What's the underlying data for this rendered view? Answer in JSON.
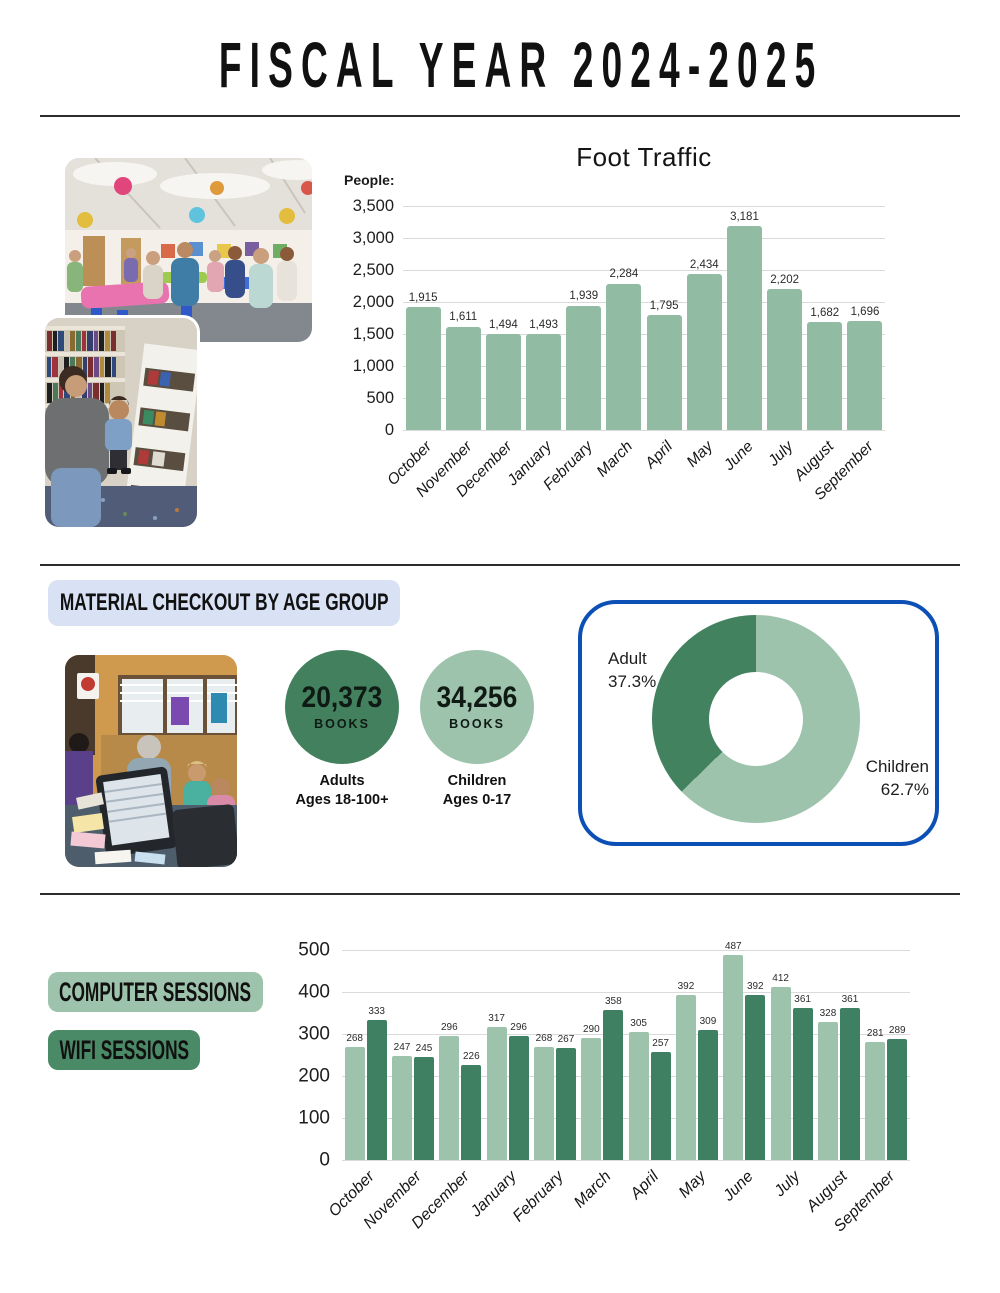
{
  "page_title": "FISCAL YEAR 2024-2025",
  "colors": {
    "light_green": "#9dc3ac",
    "dark_green": "#43805e",
    "blue_border": "#0c50b5",
    "lavender_pill": "#d9e1f5"
  },
  "photos": {
    "event_alt": "library program room with balloons and children at tables",
    "shelf_alt": "adult helping a child at a bookshelf",
    "desk_alt": "checkout desk with staff and children"
  },
  "checkout_section": {
    "heading": "MATERIAL CHECKOUT BY AGE GROUP",
    "adult_stat": {
      "value": "20,373",
      "unit": "BOOKS",
      "caption_line1": "Adults",
      "caption_line2": "Ages 18-100+"
    },
    "children_stat": {
      "value": "34,256",
      "unit": "BOOKS",
      "caption_line1": "Children",
      "caption_line2": "Ages 0-17"
    }
  },
  "sessions_section": {
    "legend_computer": "COMPUTER SESSIONS",
    "legend_wifi": "WIFI SESSIONS"
  },
  "chart_data": [
    {
      "type": "bar",
      "title": "Foot Traffic",
      "ylabel": "People:",
      "categories": [
        "October",
        "November",
        "December",
        "January",
        "February",
        "March",
        "April",
        "May",
        "June",
        "July",
        "August",
        "September"
      ],
      "values": [
        1915,
        1611,
        1494,
        1493,
        1939,
        2284,
        1795,
        2434,
        3181,
        2202,
        1682,
        1696
      ],
      "ylim": [
        0,
        3500
      ],
      "ytick_step": 500,
      "bar_color": "#92bba4",
      "grid": true,
      "legend_position": "none"
    },
    {
      "type": "pie",
      "subtype": "donut",
      "labels": [
        "Adult",
        "Children"
      ],
      "values": [
        37.3,
        62.7
      ],
      "pct_labels": [
        "37.3%",
        "62.7%"
      ],
      "colors": [
        "#43825f",
        "#9dc3ac"
      ],
      "start_angle_deg": 0,
      "direction": "clockwise-from-top, Children first"
    },
    {
      "type": "bar",
      "title": "",
      "categories": [
        "October",
        "November",
        "December",
        "January",
        "February",
        "March",
        "April",
        "May",
        "June",
        "July",
        "August",
        "September"
      ],
      "series": [
        {
          "name": "Computer Sessions",
          "color": "#9dc3ac",
          "values": [
            268,
            247,
            296,
            317,
            268,
            290,
            305,
            392,
            487,
            412,
            328,
            281
          ]
        },
        {
          "name": "WiFi Sessions",
          "color": "#3f7f62",
          "values": [
            333,
            245,
            226,
            296,
            267,
            358,
            257,
            309,
            392,
            361,
            361,
            289
          ]
        }
      ],
      "ylim": [
        0,
        500
      ],
      "ytick_step": 100,
      "grid": true,
      "legend_position": "left-pills"
    }
  ]
}
